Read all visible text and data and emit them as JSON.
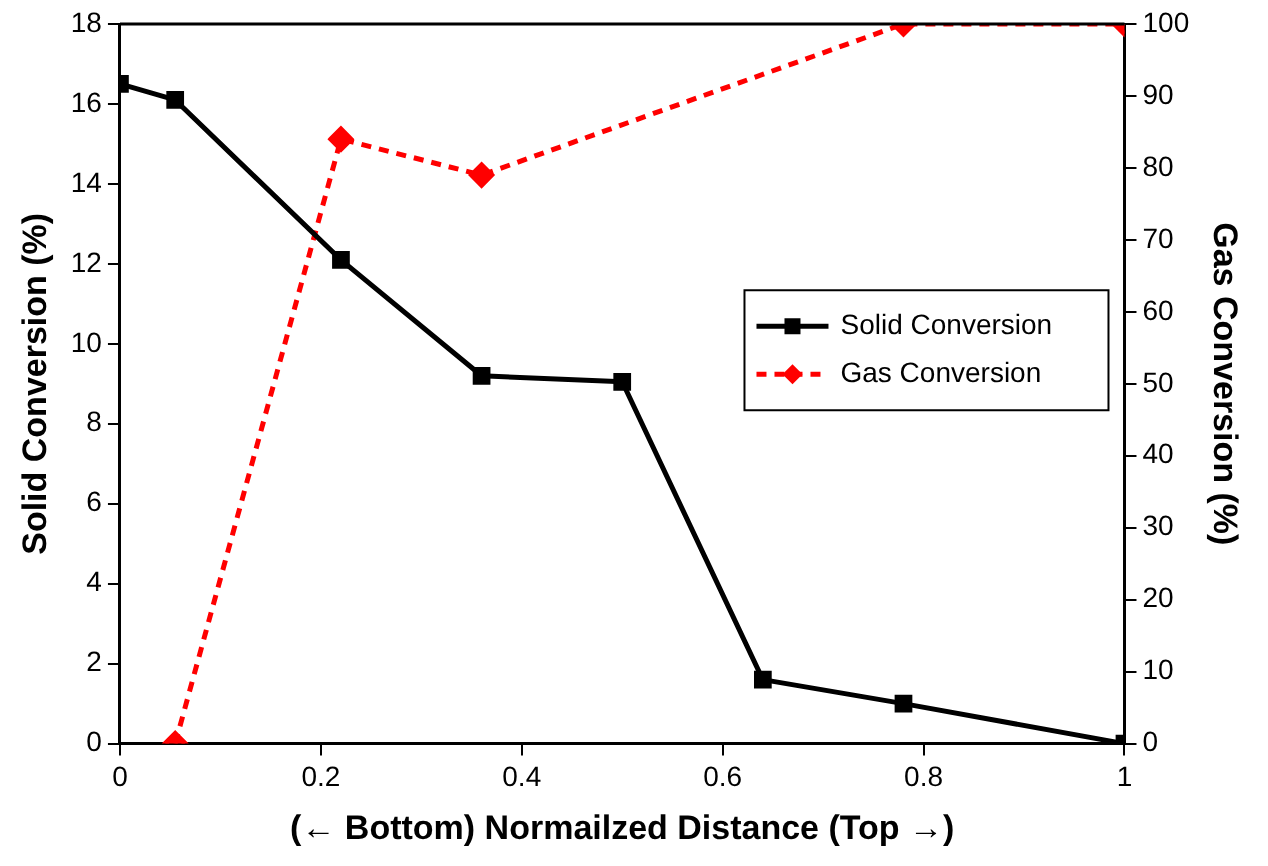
{
  "chart_data": {
    "type": "line",
    "xlabel": "(← Bottom) Normailzed Distance (Top →)",
    "ylabel": "Solid Conversion (%)",
    "y2label": "Gas Conversion (%)",
    "xlim": [
      0,
      1
    ],
    "xticks": [
      0,
      0.2,
      0.4,
      0.6,
      0.8,
      1
    ],
    "ylim": [
      0,
      18
    ],
    "yticks": [
      0,
      2,
      4,
      6,
      8,
      10,
      12,
      14,
      16,
      18
    ],
    "y2lim": [
      0,
      100
    ],
    "y2ticks": [
      0,
      10,
      20,
      30,
      40,
      50,
      60,
      70,
      80,
      90,
      100
    ],
    "grid": false,
    "legend": "right",
    "series": [
      {
        "name": "Solid Conversion",
        "color": "#000000",
        "marker": "square",
        "line_style": "solid",
        "x": [
          0,
          0.055,
          0.22,
          0.36,
          0.5,
          0.64,
          0.78,
          1
        ],
        "values": [
          16.5,
          16.1,
          12.1,
          9.2,
          9.05,
          1.6,
          1.0,
          0
        ]
      },
      {
        "name": "Gas Conversion",
        "color": "#ff0000",
        "marker": "diamond",
        "line_style": "dashed",
        "axis": "y2",
        "x": [
          0.055,
          0.22,
          0.36,
          0.78,
          1
        ],
        "values": [
          0,
          84,
          79,
          100,
          100
        ]
      }
    ]
  }
}
